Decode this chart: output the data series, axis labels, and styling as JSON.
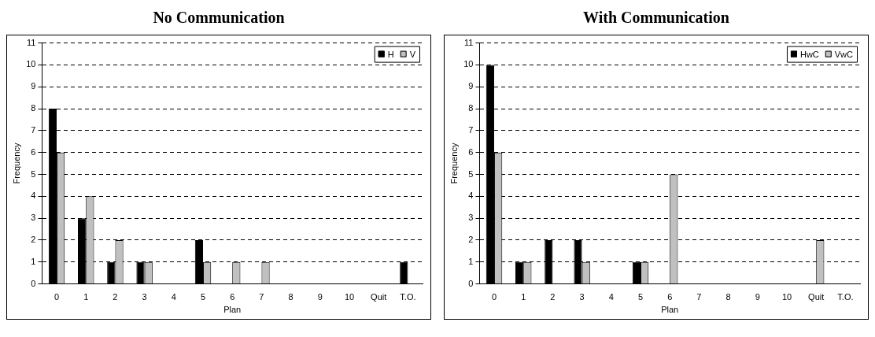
{
  "chart_data": [
    {
      "type": "bar",
      "title": "No Communication",
      "xlabel": "Plan",
      "ylabel": "Frequency",
      "categories": [
        "0",
        "1",
        "2",
        "3",
        "4",
        "5",
        "6",
        "7",
        "8",
        "9",
        "10",
        "Quit",
        "T.O."
      ],
      "series": [
        {
          "name": "H",
          "color": "#000000",
          "values": [
            8,
            3,
            1,
            1,
            0,
            2,
            0,
            0,
            0,
            0,
            0,
            0,
            1
          ]
        },
        {
          "name": "V",
          "color": "#c0c0c0",
          "values": [
            6,
            4,
            2,
            1,
            0,
            1,
            1,
            1,
            0,
            0,
            0,
            0,
            0
          ]
        }
      ],
      "ylim": [
        0,
        11
      ],
      "yticks": [
        0,
        1,
        2,
        3,
        4,
        5,
        6,
        7,
        8,
        9,
        10,
        11
      ],
      "grid": "y",
      "legend": "top right"
    },
    {
      "type": "bar",
      "title": "With Communication",
      "xlabel": "Plan",
      "ylabel": "Frequency",
      "categories": [
        "0",
        "1",
        "2",
        "3",
        "4",
        "5",
        "6",
        "7",
        "8",
        "9",
        "10",
        "Quit",
        "T.O."
      ],
      "series": [
        {
          "name": "HwC",
          "color": "#000000",
          "values": [
            10,
            1,
            2,
            2,
            0,
            1,
            0,
            0,
            0,
            0,
            0,
            0,
            0
          ]
        },
        {
          "name": "VwC",
          "color": "#c0c0c0",
          "values": [
            6,
            1,
            0,
            1,
            0,
            1,
            5,
            0,
            0,
            0,
            0,
            2,
            0
          ]
        }
      ],
      "ylim": [
        0,
        11
      ],
      "yticks": [
        0,
        1,
        2,
        3,
        4,
        5,
        6,
        7,
        8,
        9,
        10,
        11
      ],
      "grid": "y",
      "legend": "top right"
    }
  ]
}
